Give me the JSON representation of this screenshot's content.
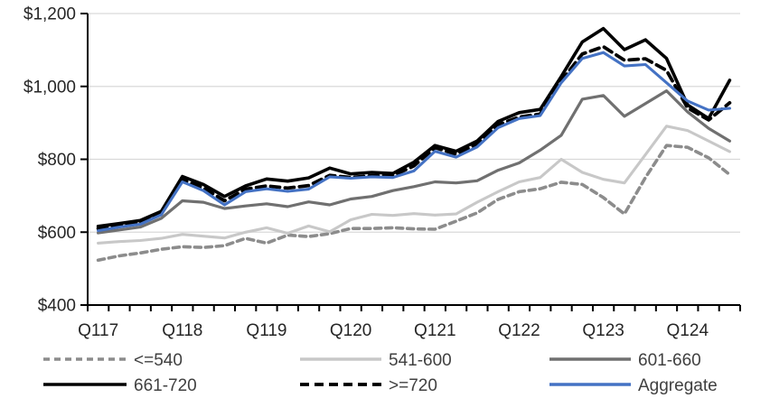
{
  "chart_data": {
    "type": "line",
    "title": "",
    "categories": [
      "Q117",
      "Q217",
      "Q317",
      "Q417",
      "Q118",
      "Q218",
      "Q318",
      "Q418",
      "Q119",
      "Q219",
      "Q319",
      "Q419",
      "Q120",
      "Q220",
      "Q320",
      "Q420",
      "Q121",
      "Q221",
      "Q321",
      "Q421",
      "Q122",
      "Q222",
      "Q322",
      "Q422",
      "Q123",
      "Q223",
      "Q323",
      "Q423",
      "Q124",
      "Q224",
      "Q324"
    ],
    "x_axis": {
      "shown_tick_labels": [
        "Q117",
        "Q118",
        "Q119",
        "Q120",
        "Q121",
        "Q122",
        "Q123",
        "Q124"
      ],
      "shown_tick_indices": [
        0,
        4,
        8,
        12,
        16,
        20,
        24,
        28
      ]
    },
    "y_axis": {
      "min": 400,
      "max": 1200,
      "step": 200,
      "tick_labels": [
        "$400",
        "$600",
        "$800",
        "$1,000",
        "$1,200"
      ],
      "grid": true
    },
    "series": [
      {
        "name": "<=540",
        "color": "#8C8C8C",
        "dash": "7,5",
        "width": 3.6,
        "values": [
          523,
          535,
          543,
          553,
          560,
          558,
          563,
          583,
          570,
          592,
          588,
          596,
          610,
          610,
          612,
          609,
          608,
          630,
          653,
          690,
          711,
          719,
          737,
          731,
          695,
          650,
          750,
          838,
          833,
          804,
          758
        ]
      },
      {
        "name": "541-600",
        "color": "#C8C8C8",
        "dash": null,
        "width": 3.1,
        "values": [
          570,
          574,
          577,
          583,
          594,
          589,
          584,
          600,
          612,
          597,
          617,
          601,
          634,
          649,
          646,
          651,
          647,
          650,
          682,
          711,
          738,
          750,
          800,
          764,
          745,
          735,
          813,
          891,
          879,
          850,
          821
        ]
      },
      {
        "name": "601-660",
        "color": "#707070",
        "dash": null,
        "width": 3.2,
        "values": [
          598,
          606,
          614,
          638,
          686,
          682,
          665,
          672,
          678,
          670,
          683,
          675,
          691,
          698,
          714,
          725,
          738,
          735,
          741,
          770,
          790,
          825,
          866,
          965,
          975,
          918,
          953,
          988,
          930,
          885,
          850
        ]
      },
      {
        "name": "661-720",
        "color": "#000000",
        "dash": null,
        "width": 3.6,
        "values": [
          616,
          624,
          632,
          657,
          753,
          731,
          698,
          727,
          746,
          740,
          749,
          776,
          760,
          764,
          761,
          792,
          838,
          822,
          850,
          904,
          928,
          937,
          1027,
          1122,
          1159,
          1101,
          1128,
          1077,
          949,
          912,
          1017
        ]
      },
      {
        "name": ">=720",
        "color": "#000000",
        "dash": "10,6",
        "width": 3.8,
        "values": [
          610,
          618,
          626,
          650,
          744,
          722,
          686,
          718,
          727,
          721,
          728,
          756,
          750,
          755,
          755,
          782,
          832,
          814,
          842,
          895,
          916,
          924,
          1015,
          1089,
          1109,
          1072,
          1076,
          1044,
          941,
          908,
          955
        ]
      },
      {
        "name": "Aggregate",
        "color": "#4472C4",
        "dash": null,
        "width": 3.1,
        "values": [
          604,
          614,
          622,
          648,
          738,
          714,
          675,
          711,
          719,
          712,
          718,
          752,
          748,
          752,
          750,
          768,
          822,
          806,
          834,
          887,
          912,
          920,
          1010,
          1077,
          1093,
          1056,
          1060,
          1010,
          960,
          935,
          940
        ]
      }
    ],
    "legend": {
      "position": "bottom",
      "rows": [
        [
          "<=540",
          "541-600",
          "601-660"
        ],
        [
          "661-720",
          ">=720",
          "Aggregate"
        ]
      ]
    }
  },
  "colors": {
    "background": "#FFFFFF",
    "axis": "#000000",
    "grid": "#D9D9D9",
    "axis_text": "#262626",
    "legend_text": "#404040"
  }
}
